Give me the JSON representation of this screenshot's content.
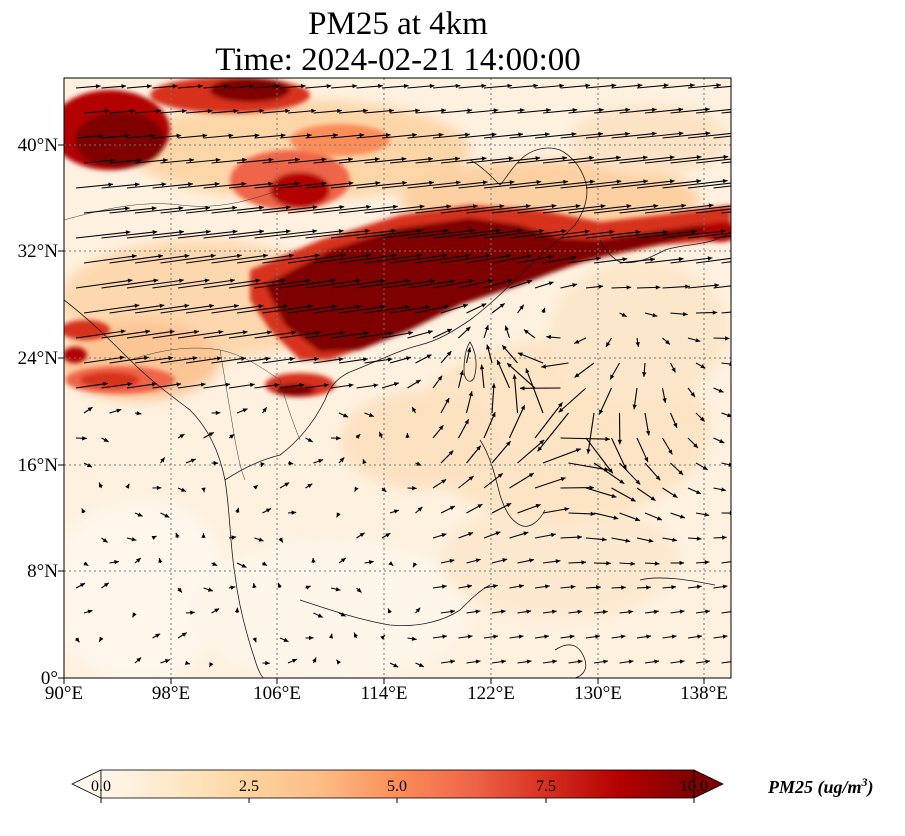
{
  "figure": {
    "title_line1": "PM25 at 4km",
    "title_line2": "Time: 2024-02-21 14:00:00"
  },
  "map": {
    "projection": "PlateCarree",
    "lon_range": [
      90,
      140
    ],
    "lat_range": [
      0,
      45
    ],
    "gridlines": "dotted",
    "lat_ticks": [
      {
        "value": 40,
        "label": "40°N"
      },
      {
        "value": 32,
        "label": "32°N"
      },
      {
        "value": 24,
        "label": "24°N"
      },
      {
        "value": 16,
        "label": "16°N"
      },
      {
        "value": 8,
        "label": "8°N"
      },
      {
        "value": 0,
        "label": "0°"
      }
    ],
    "lon_ticks": [
      {
        "value": 90,
        "label": "90°E"
      },
      {
        "value": 98,
        "label": "98°E"
      },
      {
        "value": 106,
        "label": "106°E"
      },
      {
        "value": 114,
        "label": "114°E"
      },
      {
        "value": 122,
        "label": "122°E"
      },
      {
        "value": 130,
        "label": "130°E"
      },
      {
        "value": 138,
        "label": "138°E"
      }
    ],
    "field": "PM25 concentration (filled) with wind vectors (quiver)"
  },
  "colorbar": {
    "cmap": "OrRd",
    "colors": [
      "#fff7ec",
      "#fee8c8",
      "#fdd49e",
      "#fdbb84",
      "#fc8d59",
      "#ef6548",
      "#d7301f",
      "#b30000",
      "#7f0000"
    ],
    "vmin": 0.0,
    "vmax": 10.0,
    "extend": "both",
    "ticks": [
      "0.0",
      "2.5",
      "5.0",
      "7.5",
      "10.0"
    ],
    "label_text": "PM25 (ug/m",
    "label_exponent": "3",
    "label_close": ")"
  }
}
